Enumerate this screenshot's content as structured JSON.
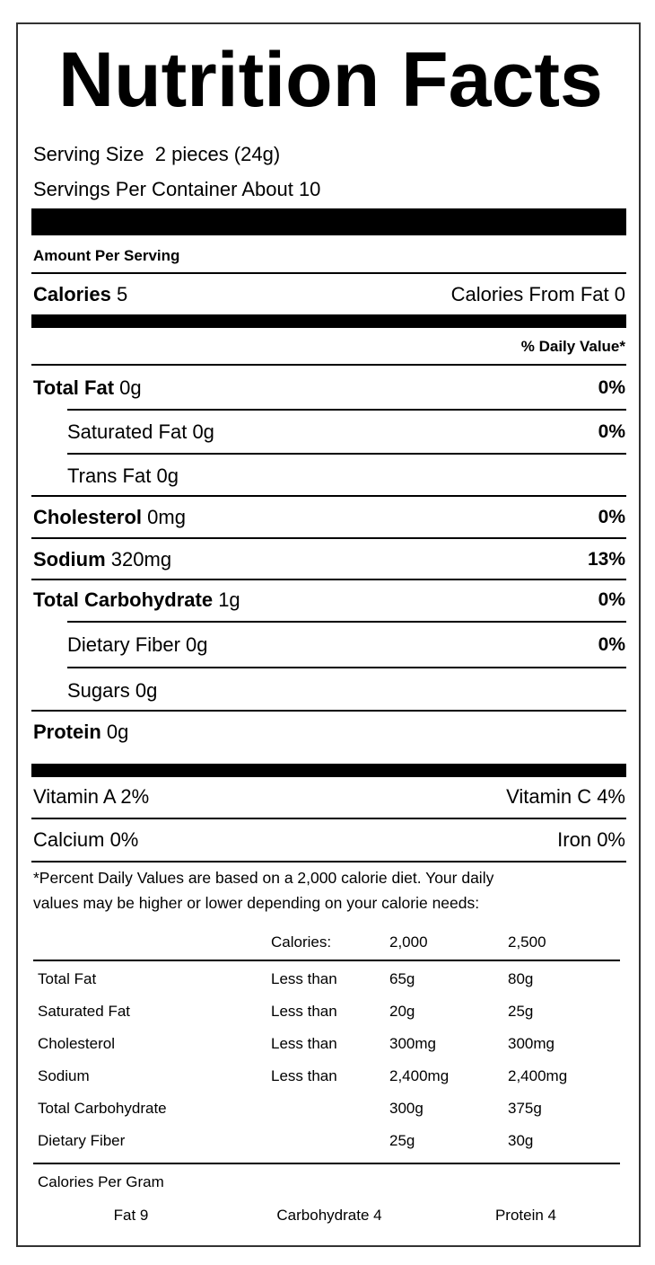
{
  "title": "Nutrition Facts",
  "serving": {
    "size_label": "Serving Size",
    "size": "2 pieces (24g)",
    "per_container": "Servings Per Container About 10"
  },
  "amount_per_serving": "Amount Per Serving",
  "calories": {
    "label": "Calories",
    "value": "5",
    "from_fat": "Calories From Fat 0"
  },
  "daily_value_header": "% Daily Value*",
  "nutrients": [
    {
      "name": "Total Fat",
      "amount": "0g",
      "daily_value": "0%"
    },
    {
      "name": "Saturated Fat",
      "amount": "0g",
      "daily_value": "0%"
    },
    {
      "name": "Trans Fat",
      "amount": "0g"
    },
    {
      "name": "Cholesterol",
      "amount": "0mg",
      "daily_value": "0%"
    },
    {
      "name": "Sodium",
      "amount": "320mg",
      "daily_value": "13%"
    },
    {
      "name": "Total Carbohydrate",
      "amount": "1g",
      "daily_value": "0%"
    },
    {
      "name": "Dietary Fiber",
      "amount": "0g",
      "daily_value": "0%"
    },
    {
      "name": "Sugars",
      "amount": "0g"
    },
    {
      "name": "Protein",
      "amount": "0g"
    }
  ],
  "vitamins": [
    [
      "Vitamin A 2%",
      "Vitamin C 4%"
    ],
    [
      "Calcium 0%",
      "Iron 0%"
    ]
  ],
  "footnote": [
    "*Percent Daily Values are based on a 2,000 calorie diet. Your daily",
    "values may be higher or lower depending on your calorie needs:"
  ],
  "daily_table": {
    "header": [
      "Calories:",
      "2,000",
      "2,500"
    ],
    "rows": [
      {
        "nutrient": "Total Fat",
        "limit": "Less than",
        "cal_2000": "65g",
        "cal_2500": "80g"
      },
      {
        "nutrient": "Saturated Fat",
        "limit": "Less than",
        "cal_2000": "20g",
        "cal_2500": "25g"
      },
      {
        "nutrient": "Cholesterol",
        "limit": "Less than",
        "cal_2000": "300mg",
        "cal_2500": "300mg"
      },
      {
        "nutrient": "Sodium",
        "limit": "Less than",
        "cal_2000": "2,400mg",
        "cal_2500": "2,400mg"
      },
      {
        "nutrient": "Total Carbohydrate",
        "cal_2000": "300g",
        "cal_2500": "375g"
      },
      {
        "nutrient": "Dietary Fiber",
        "cal_2000": "25g",
        "cal_2500": "30g"
      }
    ]
  },
  "calories_per_gram": {
    "label": "Calories Per Gram",
    "items": [
      "Fat 9",
      "Carbohydrate 4",
      "Protein 4"
    ]
  }
}
